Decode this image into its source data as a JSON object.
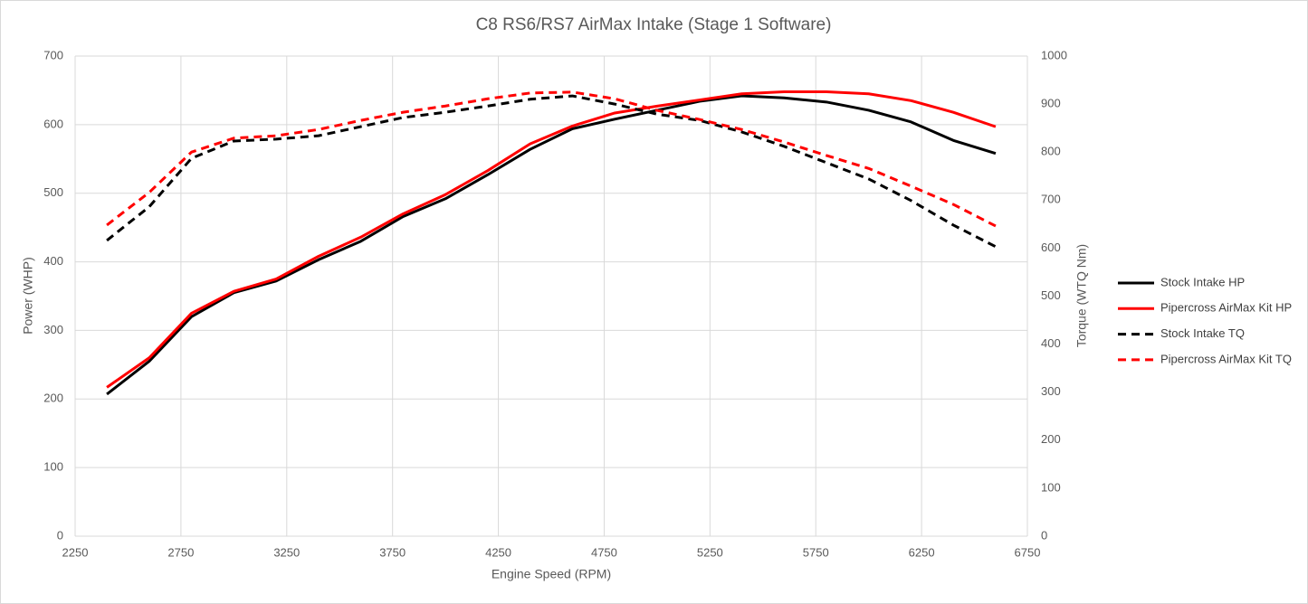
{
  "chart_data": {
    "type": "line",
    "title": "C8 RS6/RS7 AirMax Intake (Stage 1 Software)",
    "x_label": "Engine Speed (RPM)",
    "y_label": "Power (WHP)",
    "y2_label": "Torque (WTQ Nm)",
    "x": [
      2400,
      2600,
      2800,
      3000,
      3200,
      3400,
      3600,
      3800,
      4000,
      4200,
      4400,
      4600,
      4800,
      5000,
      5200,
      5400,
      5600,
      5800,
      6000,
      6200,
      6400,
      6600
    ],
    "series": [
      {
        "name": "Stock Intake HP",
        "color": "#000000",
        "dashed": false,
        "values": [
          207,
          255,
          320,
          355,
          372,
          403,
          430,
          466,
          492,
          527,
          564,
          594,
          608,
          621,
          634,
          642,
          639,
          633,
          621,
          604,
          577,
          558
        ]
      },
      {
        "name": "Pipercross AirMax Kit HP",
        "color": "#ff0000",
        "dashed": false,
        "values": [
          217,
          260,
          325,
          357,
          375,
          408,
          436,
          470,
          498,
          533,
          572,
          598,
          617,
          627,
          636,
          645,
          648,
          648,
          645,
          635,
          618,
          597
        ]
      },
      {
        "name": "Stock Intake TQ",
        "color": "#000000",
        "dashed": true,
        "axis": "y2",
        "values": [
          616,
          686,
          787,
          823,
          827,
          834,
          853,
          872,
          883,
          896,
          910,
          917,
          900,
          879,
          866,
          842,
          812,
          778,
          744,
          699,
          648,
          603
        ]
      },
      {
        "name": "Pipercross AirMax Kit TQ",
        "color": "#ff0000",
        "dashed": true,
        "axis": "y2",
        "values": [
          648,
          716,
          800,
          829,
          834,
          847,
          866,
          883,
          896,
          911,
          923,
          925,
          911,
          887,
          868,
          847,
          821,
          793,
          766,
          729,
          691,
          646
        ]
      }
    ],
    "xlim": [
      2250,
      6750
    ],
    "xticks": [
      2250,
      2750,
      3250,
      3750,
      4250,
      4750,
      5250,
      5750,
      6250,
      6750
    ],
    "ylim": [
      0,
      700
    ],
    "yticks": [
      0,
      100,
      200,
      300,
      400,
      500,
      600,
      700
    ],
    "y2lim": [
      0,
      1000
    ],
    "y2ticks": [
      0,
      100,
      200,
      300,
      400,
      500,
      600,
      700,
      800,
      900,
      1000
    ],
    "grid": true,
    "legend": "right"
  }
}
